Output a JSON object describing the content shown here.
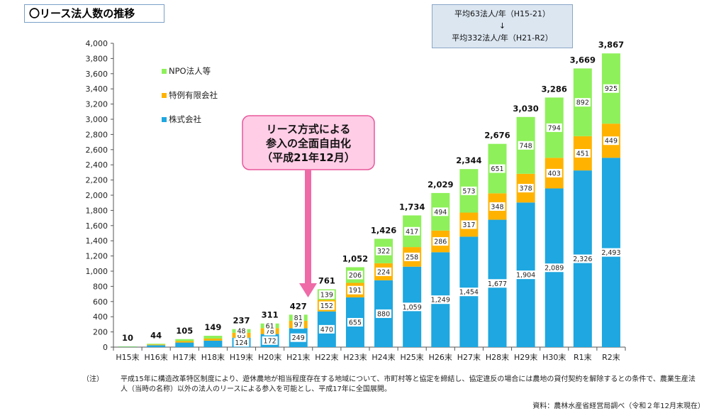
{
  "title": "〇リース法人数の推移",
  "average_box": {
    "line1": "平均63法人/年（H15-21）",
    "arrow": "↓",
    "line2": "平均332法人/年（H21-R2）"
  },
  "callout": {
    "line1": "リース方式による",
    "line2": "参入の全面自由化",
    "line3": "（平成21年12月）"
  },
  "note": {
    "mark": "（注）",
    "text": "平成15年に構造改革特区制度により、遊休農地が相当程度存在する地域について、市町村等と協定を締結し、協定違反の場合には農地の貸付契約を解除するとの条件で、農業生産法人（当時の名称）以外の法人のリースによる参入を可能とし、平成17年に全国展開。"
  },
  "source": "資料：農林水産省経営局調べ（令和２年12月末現在）",
  "colors": {
    "kabushiki": "#1ea7e0",
    "tokurei": "#ffb300",
    "npo": "#8ef05a",
    "callout_fill": "#ffcde6",
    "callout_border": "#e8579b",
    "arrow": "#ee6ba8"
  },
  "chart_data": {
    "type": "bar",
    "stacked": true,
    "categories": [
      "H15末",
      "H16末",
      "H17末",
      "H18末",
      "H19末",
      "H20末",
      "H21末",
      "H22末",
      "H23末",
      "H24末",
      "H25末",
      "H26末",
      "H27末",
      "H28末",
      "H29末",
      "H30末",
      "R1末",
      "R2末"
    ],
    "series": [
      {
        "name": "株式会社",
        "color": "#1ea7e0",
        "values": [
          6,
          25,
          60,
          85,
          124,
          172,
          249,
          470,
          655,
          880,
          1059,
          1249,
          1454,
          1677,
          1904,
          2089,
          2326,
          2493
        ],
        "labels": [
          "",
          "",
          "",
          "",
          "124",
          "172",
          "249",
          "470",
          "655",
          "880",
          "1,059",
          "1,249",
          "1,454",
          "1,677",
          "1,904",
          "2,089",
          "2,326",
          "2,493"
        ]
      },
      {
        "name": "特例有限会社",
        "color": "#ffb300",
        "values": [
          2,
          9,
          20,
          27,
          65,
          78,
          97,
          152,
          191,
          224,
          258,
          286,
          317,
          348,
          378,
          403,
          451,
          449
        ],
        "labels": [
          "",
          "",
          "",
          "",
          "65",
          "78",
          "97",
          "152",
          "191",
          "224",
          "258",
          "286",
          "317",
          "348",
          "378",
          "403",
          "451",
          "449"
        ]
      },
      {
        "name": "NPO法人等",
        "color": "#8ef05a",
        "values": [
          2,
          10,
          25,
          37,
          48,
          61,
          81,
          139,
          206,
          322,
          417,
          494,
          573,
          651,
          748,
          794,
          892,
          925
        ],
        "labels": [
          "",
          "",
          "",
          "",
          "48",
          "61",
          "81",
          "139",
          "206",
          "322",
          "417",
          "494",
          "573",
          "651",
          "748",
          "794",
          "892",
          "925"
        ]
      }
    ],
    "totals": [
      "10",
      "44",
      "105",
      "149",
      "237",
      "311",
      "427",
      "761",
      "1,052",
      "1,426",
      "1,734",
      "2,029",
      "2,344",
      "2,676",
      "3,030",
      "3,286",
      "3,669",
      "3,867"
    ],
    "ylim": [
      0,
      4000
    ],
    "yticks": [
      "0",
      "200",
      "400",
      "600",
      "800",
      "1,000",
      "1,200",
      "1,400",
      "1,600",
      "1,800",
      "2,000",
      "2,200",
      "2,400",
      "2,600",
      "2,800",
      "3,000",
      "3,200",
      "3,400",
      "3,600",
      "3,800",
      "4,000"
    ],
    "legend": [
      "NPO法人等",
      "特例有限会社",
      "株式会社"
    ],
    "grid": false,
    "legend_position": "top-left"
  }
}
